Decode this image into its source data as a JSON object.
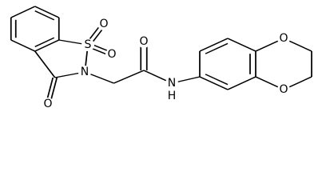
{
  "atoms": [
    {
      "label": "S"
    },
    {
      "label": "O"
    },
    {
      "label": "O"
    },
    {
      "label": "N"
    },
    {
      "label": "O"
    },
    {
      "label": "O"
    },
    {
      "label": "N"
    },
    {
      "label": "H"
    },
    {
      "label": "O"
    },
    {
      "label": "O"
    }
  ]
}
